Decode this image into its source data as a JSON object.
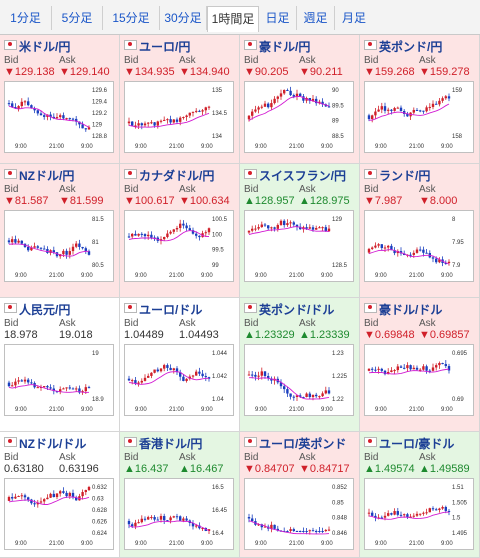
{
  "tabs": [
    {
      "label": "1分足",
      "active": false
    },
    {
      "label": "5分足",
      "active": false
    },
    {
      "label": "15分足",
      "active": false
    },
    {
      "label": "30分足",
      "active": false
    },
    {
      "label": "1時間足",
      "active": true
    },
    {
      "label": "日足",
      "active": false
    },
    {
      "label": "週足",
      "active": false
    },
    {
      "label": "月足",
      "active": false
    }
  ],
  "labels": {
    "bid": "Bid",
    "ask": "Ask"
  },
  "colors": {
    "down_bg": "#fde4e4",
    "up_bg": "#e4f6e2",
    "down_text": "#d0202a",
    "up_text": "#1e8a2f",
    "ma_line": "#d21ad2",
    "candle_up": "#d0202a",
    "candle_down": "#1a3fbf"
  },
  "pairs": [
    {
      "name": "米ドル/円",
      "dir": "down",
      "bid": "▼129.138",
      "ask": "▼129.140",
      "yticks": [
        "129.6",
        "129.4",
        "129.2",
        "129",
        "128.8"
      ],
      "xticks": [
        "9:00",
        "21:00",
        "9:00"
      ]
    },
    {
      "name": "ユーロ/円",
      "dir": "down",
      "bid": "▼134.935",
      "ask": "▼134.940",
      "yticks": [
        "135",
        "134.5",
        "134"
      ],
      "xticks": [
        "9:00",
        "21:00",
        "9:00"
      ]
    },
    {
      "name": "豪ドル/円",
      "dir": "down",
      "bid": "▼90.205",
      "ask": "▼90.211",
      "yticks": [
        "90",
        "89.5",
        "89",
        "88.5"
      ],
      "xticks": [
        "9:00",
        "21:00",
        "9:00"
      ]
    },
    {
      "name": "英ポンド/円",
      "dir": "down",
      "bid": "▼159.268",
      "ask": "▼159.278",
      "yticks": [
        "159",
        "158"
      ],
      "xticks": [
        "9:00",
        "21:00",
        "9:00"
      ]
    },
    {
      "name": "NZドル/円",
      "dir": "down",
      "bid": "▼81.587",
      "ask": "▼81.599",
      "yticks": [
        "81.5",
        "81",
        "80.5"
      ],
      "xticks": [
        "9:00",
        "21:00",
        "9:00"
      ]
    },
    {
      "name": "カナダドル/円",
      "dir": "down",
      "bid": "▼100.617",
      "ask": "▼100.634",
      "yticks": [
        "100.5",
        "100",
        "99.5",
        "99"
      ],
      "xticks": [
        "9:00",
        "21:00",
        "9:00"
      ]
    },
    {
      "name": "スイスフラン/円",
      "dir": "up",
      "bid": "▲128.957",
      "ask": "▲128.975",
      "yticks": [
        "129",
        "128.5"
      ],
      "xticks": [
        "9:00",
        "21:00",
        "9:00"
      ]
    },
    {
      "name": "ランド/円",
      "dir": "down",
      "bid": "▼7.987",
      "ask": "▼8.000",
      "yticks": [
        "8",
        "7.95",
        "7.9"
      ],
      "xticks": [
        "9:00",
        "21:00",
        "9:00"
      ]
    },
    {
      "name": "人民元/円",
      "dir": "flat",
      "bid": "18.978",
      "ask": "19.018",
      "yticks": [
        "19",
        "18.9"
      ],
      "xticks": [
        "9:00",
        "21:00",
        "9:00"
      ]
    },
    {
      "name": "ユーロ/ドル",
      "dir": "flat",
      "bid": "1.04489",
      "ask": "1.04493",
      "yticks": [
        "1.044",
        "1.042",
        "1.04"
      ],
      "xticks": [
        "9:00",
        "21:00",
        "9:00"
      ]
    },
    {
      "name": "英ポンド/ドル",
      "dir": "up",
      "bid": "▲1.23329",
      "ask": "▲1.23339",
      "yticks": [
        "1.23",
        "1.225",
        "1.22"
      ],
      "xticks": [
        "9:00",
        "21:00",
        "9:00"
      ]
    },
    {
      "name": "豪ドル/ドル",
      "dir": "down",
      "bid": "▼0.69848",
      "ask": "▼0.69857",
      "yticks": [
        "0.695",
        "0.69"
      ],
      "xticks": [
        "9:00",
        "21:00",
        "9:00"
      ]
    },
    {
      "name": "NZドル/ドル",
      "dir": "flat",
      "bid": "0.63180",
      "ask": "0.63196",
      "yticks": [
        "0.632",
        "0.63",
        "0.628",
        "0.626",
        "0.624"
      ],
      "xticks": [
        "9:00",
        "21:00",
        "9:00"
      ]
    },
    {
      "name": "香港ドル/円",
      "dir": "up",
      "bid": "▲16.437",
      "ask": "▲16.467",
      "yticks": [
        "16.5",
        "16.45",
        "16.4"
      ],
      "xticks": [
        "9:00",
        "21:00",
        "9:00"
      ]
    },
    {
      "name": "ユーロ/英ポンド",
      "dir": "down",
      "bid": "▼0.84707",
      "ask": "▼0.84717",
      "yticks": [
        "0.852",
        "0.85",
        "0.848",
        "0.846"
      ],
      "xticks": [
        "9:00",
        "21:00",
        "9:00"
      ]
    },
    {
      "name": "ユーロ/豪ドル",
      "dir": "up",
      "bid": "▲1.49574",
      "ask": "▲1.49589",
      "yticks": [
        "1.51",
        "1.505",
        "1.5",
        "1.495"
      ],
      "xticks": [
        "9:00",
        "21:00",
        "9:00"
      ]
    }
  ]
}
